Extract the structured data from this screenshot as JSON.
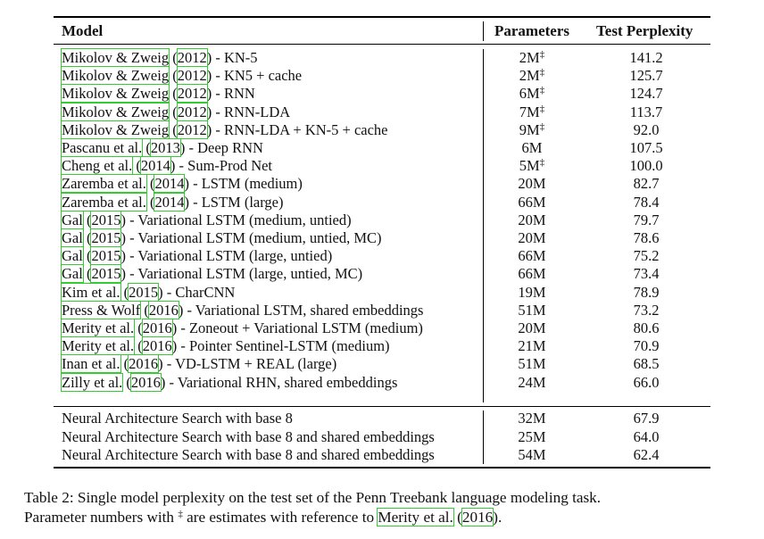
{
  "table": {
    "headers": {
      "model": "Model",
      "params": "Parameters",
      "ppl": "Test Perplexity"
    },
    "rows_group1": [
      {
        "pre": "",
        "cite1": "Mikolov & Zweig",
        "mid": " (",
        "cite2": "2012",
        "post": ") - KN-5",
        "params": "2M",
        "dagger": "‡",
        "ppl": "141.2"
      },
      {
        "pre": "",
        "cite1": "Mikolov & Zweig",
        "mid": " (",
        "cite2": "2012",
        "post": ") - KN5 + cache",
        "params": "2M",
        "dagger": "‡",
        "ppl": "125.7"
      },
      {
        "pre": "",
        "cite1": "Mikolov & Zweig",
        "mid": " (",
        "cite2": "2012",
        "post": ") - RNN",
        "params": "6M",
        "dagger": "‡",
        "ppl": "124.7"
      },
      {
        "pre": "",
        "cite1": "Mikolov & Zweig",
        "mid": " (",
        "cite2": "2012",
        "post": ") - RNN-LDA",
        "params": "7M",
        "dagger": "‡",
        "ppl": "113.7"
      },
      {
        "pre": "",
        "cite1": "Mikolov & Zweig",
        "mid": " (",
        "cite2": "2012",
        "post": ") - RNN-LDA + KN-5 + cache",
        "params": "9M",
        "dagger": "‡",
        "ppl": "92.0"
      },
      {
        "pre": "",
        "cite1": "Pascanu et al.",
        "mid": " (",
        "cite2": "2013",
        "post": ") - Deep RNN",
        "params": "6M",
        "dagger": "",
        "ppl": "107.5"
      },
      {
        "pre": "",
        "cite1": "Cheng et al.",
        "mid": " (",
        "cite2": "2014",
        "post": ") - Sum-Prod Net",
        "params": "5M",
        "dagger": "‡",
        "ppl": "100.0"
      },
      {
        "pre": "",
        "cite1": "Zaremba et al.",
        "mid": " (",
        "cite2": "2014",
        "post": ") - LSTM (medium)",
        "params": "20M",
        "dagger": "",
        "ppl": "82.7"
      },
      {
        "pre": "",
        "cite1": "Zaremba et al.",
        "mid": " (",
        "cite2": "2014",
        "post": ") - LSTM (large)",
        "params": "66M",
        "dagger": "",
        "ppl": "78.4"
      },
      {
        "pre": "",
        "cite1": "Gal",
        "mid": " (",
        "cite2": "2015",
        "post": ") - Variational LSTM (medium, untied)",
        "params": "20M",
        "dagger": "",
        "ppl": "79.7"
      },
      {
        "pre": "",
        "cite1": "Gal",
        "mid": " (",
        "cite2": "2015",
        "post": ") - Variational LSTM (medium, untied, MC)",
        "params": "20M",
        "dagger": "",
        "ppl": "78.6"
      },
      {
        "pre": "",
        "cite1": "Gal",
        "mid": " (",
        "cite2": "2015",
        "post": ") - Variational LSTM (large, untied)",
        "params": "66M",
        "dagger": "",
        "ppl": "75.2"
      },
      {
        "pre": "",
        "cite1": "Gal",
        "mid": " (",
        "cite2": "2015",
        "post": ") - Variational LSTM (large, untied, MC)",
        "params": "66M",
        "dagger": "",
        "ppl": "73.4"
      },
      {
        "pre": "",
        "cite1": "Kim et al.",
        "mid": " (",
        "cite2": "2015",
        "post": ") - CharCNN",
        "params": "19M",
        "dagger": "",
        "ppl": "78.9"
      },
      {
        "pre": "",
        "cite1": "Press & Wolf",
        "mid": " (",
        "cite2": "2016",
        "post": ") - Variational LSTM, shared embeddings",
        "params": "51M",
        "dagger": "",
        "ppl": "73.2"
      },
      {
        "pre": "",
        "cite1": "Merity et al.",
        "mid": " (",
        "cite2": "2016",
        "post": ") - Zoneout + Variational LSTM (medium)",
        "params": "20M",
        "dagger": "",
        "ppl": "80.6"
      },
      {
        "pre": "",
        "cite1": "Merity et al.",
        "mid": " (",
        "cite2": "2016",
        "post": ") - Pointer Sentinel-LSTM (medium)",
        "params": "21M",
        "dagger": "",
        "ppl": "70.9"
      },
      {
        "pre": "",
        "cite1": "Inan et al.",
        "mid": " (",
        "cite2": "2016",
        "post": ") - VD-LSTM + REAL (large)",
        "params": "51M",
        "dagger": "",
        "ppl": "68.5"
      },
      {
        "pre": "",
        "cite1": "Zilly et al.",
        "mid": " (",
        "cite2": "2016",
        "post": ") - Variational RHN, shared embeddings",
        "params": "24M",
        "dagger": "",
        "ppl": "66.0"
      }
    ],
    "rows_group2": [
      {
        "model": "Neural Architecture Search with base 8",
        "params": "32M",
        "ppl": "67.9"
      },
      {
        "model": "Neural Architecture Search with base 8 and shared embeddings",
        "params": "25M",
        "ppl": "64.0"
      },
      {
        "model": "Neural Architecture Search with base 8 and shared embeddings",
        "params": "54M",
        "ppl": "62.4"
      }
    ]
  },
  "caption": {
    "line1": "Table 2: Single model perplexity on the test set of the Penn Treebank language modeling task.",
    "line2_pre": "Parameter numbers with ",
    "line2_dagger": "‡",
    "line2_mid": " are estimates with reference to ",
    "line2_cite1": "Merity et al.",
    "line2_paren": " (",
    "line2_cite2": "2016",
    "line2_end": ")."
  }
}
